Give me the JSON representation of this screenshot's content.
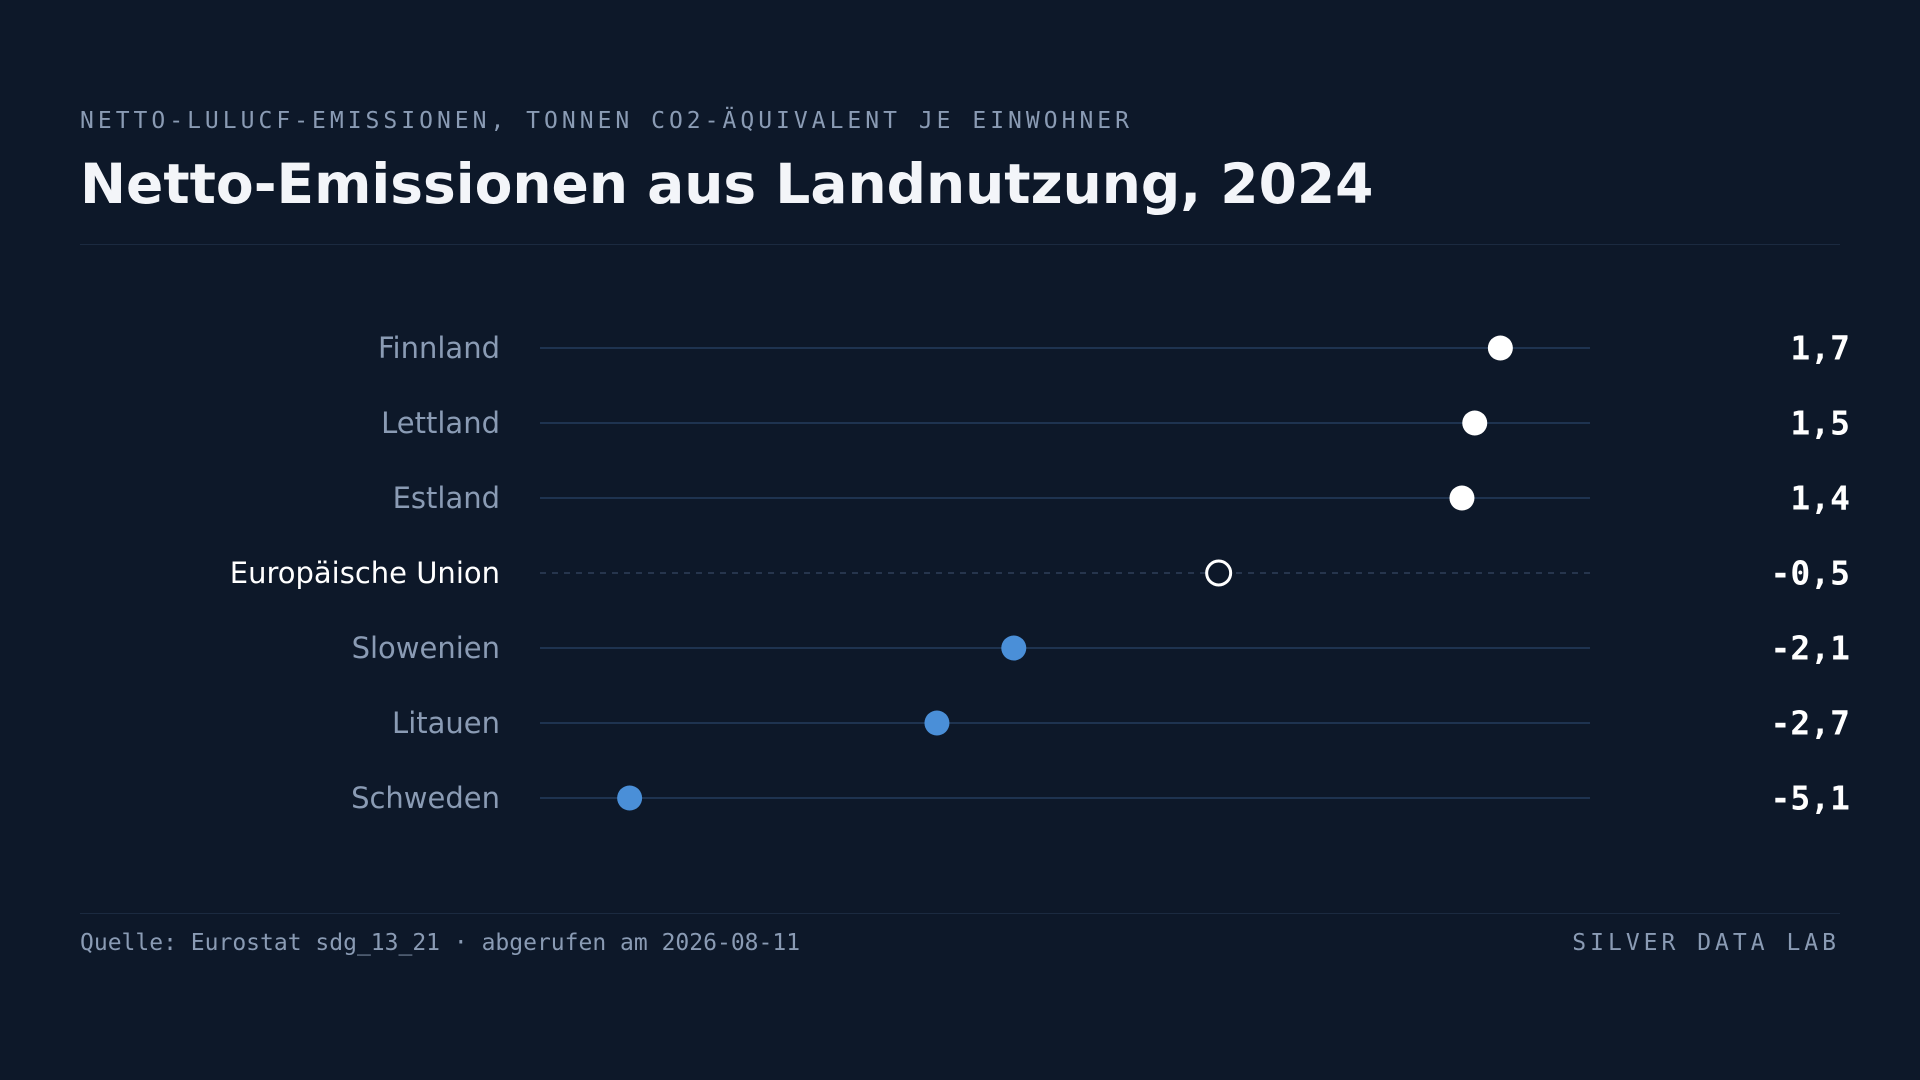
{
  "header": {
    "kicker": "NETTO-LULUCF-EMISSIONEN, TONNEN CO2-ÄQUIVALENT JE EINWOHNER",
    "title": "Netto-Emissionen aus Landnutzung, 2024"
  },
  "footer": {
    "source": "Quelle: Eurostat sdg_13_21 · abgerufen am 2026-08-11",
    "brand": "SILVER DATA LAB"
  },
  "chart_data": {
    "type": "scatter",
    "title": "Netto-Emissionen aus Landnutzung, 2024",
    "subtitle": "NETTO-LULUCF-EMISSIONEN, TONNEN CO2-ÄQUIVALENT JE EINWOHNER",
    "xlabel": "",
    "ylabel": "",
    "xlim": [
      -5.8,
      2.4
    ],
    "grid": false,
    "legend": "none",
    "categories": [
      "Finnland",
      "Lettland",
      "Estland",
      "Europäische Union",
      "Slowenien",
      "Litauen",
      "Schweden"
    ],
    "values": [
      1.7,
      1.5,
      1.4,
      -0.5,
      -2.1,
      -2.7,
      -5.1
    ],
    "value_labels": [
      "1,7",
      "1,5",
      "1,4",
      "-0,5",
      "-2,1",
      "-2,7",
      "-5,1"
    ],
    "highlight": "Europäische Union",
    "colors": {
      "positive": "#ffffff",
      "negative": "#4a8fd8",
      "reference": "#ffffff",
      "track": "#1e3350",
      "label": "#8a9bb4",
      "label_highlight": "#ffffff",
      "value": "#ffffff"
    }
  }
}
